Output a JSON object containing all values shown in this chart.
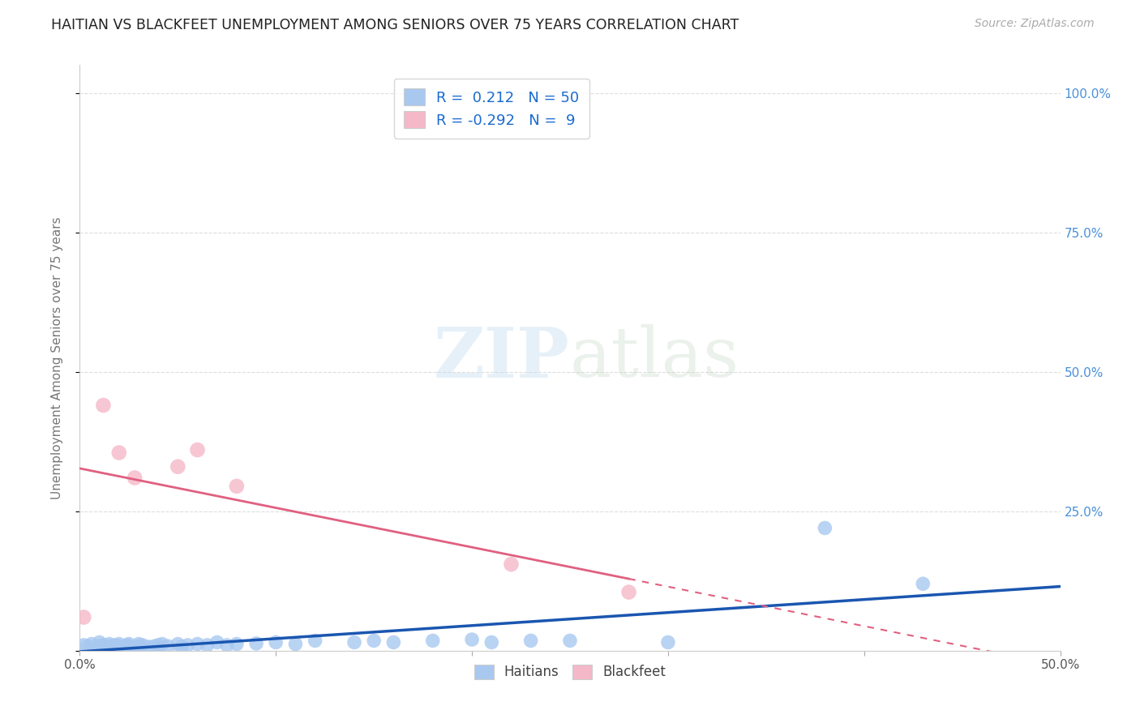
{
  "title": "HAITIAN VS BLACKFEET UNEMPLOYMENT AMONG SENIORS OVER 75 YEARS CORRELATION CHART",
  "source": "Source: ZipAtlas.com",
  "ylabel": "Unemployment Among Seniors over 75 years",
  "xlim": [
    0.0,
    0.5
  ],
  "ylim": [
    0.0,
    1.05
  ],
  "xticks": [
    0.0,
    0.1,
    0.2,
    0.3,
    0.4,
    0.5
  ],
  "xtick_labels": [
    "0.0%",
    "",
    "",
    "",
    "",
    "50.0%"
  ],
  "yticks": [
    0.0,
    0.25,
    0.5,
    0.75,
    1.0
  ],
  "ytick_labels": [
    "",
    "25.0%",
    "50.0%",
    "75.0%",
    "100.0%"
  ],
  "haitian_R": "0.212",
  "haitian_N": "50",
  "blackfeet_R": "-0.292",
  "blackfeet_N": "9",
  "haitian_color": "#a8c8f0",
  "haitian_line_color": "#1a56b0",
  "blackfeet_color": "#f5b8c8",
  "blackfeet_line_color": "#e06080",
  "ytick_color": "#4a90d9",
  "grid_color": "#dddddd",
  "haitian_x": [
    0.002,
    0.004,
    0.006,
    0.008,
    0.01,
    0.01,
    0.012,
    0.013,
    0.015,
    0.015,
    0.016,
    0.018,
    0.02,
    0.02,
    0.022,
    0.024,
    0.025,
    0.025,
    0.027,
    0.03,
    0.03,
    0.032,
    0.035,
    0.038,
    0.04,
    0.042,
    0.045,
    0.05,
    0.052,
    0.055,
    0.06,
    0.065,
    0.07,
    0.075,
    0.08,
    0.09,
    0.1,
    0.11,
    0.12,
    0.14,
    0.15,
    0.16,
    0.18,
    0.2,
    0.21,
    0.23,
    0.25,
    0.3,
    0.38,
    0.43
  ],
  "haitian_y": [
    0.01,
    0.008,
    0.012,
    0.005,
    0.015,
    0.008,
    0.01,
    0.006,
    0.012,
    0.005,
    0.008,
    0.01,
    0.008,
    0.012,
    0.007,
    0.01,
    0.008,
    0.012,
    0.006,
    0.008,
    0.012,
    0.01,
    0.007,
    0.008,
    0.01,
    0.012,
    0.008,
    0.012,
    0.007,
    0.01,
    0.012,
    0.01,
    0.015,
    0.01,
    0.012,
    0.013,
    0.015,
    0.012,
    0.018,
    0.015,
    0.018,
    0.015,
    0.018,
    0.02,
    0.015,
    0.018,
    0.018,
    0.015,
    0.22,
    0.12
  ],
  "blackfeet_x": [
    0.002,
    0.012,
    0.02,
    0.028,
    0.05,
    0.06,
    0.08,
    0.22,
    0.28
  ],
  "blackfeet_y": [
    0.06,
    0.44,
    0.355,
    0.31,
    0.33,
    0.36,
    0.295,
    0.155,
    0.105
  ]
}
